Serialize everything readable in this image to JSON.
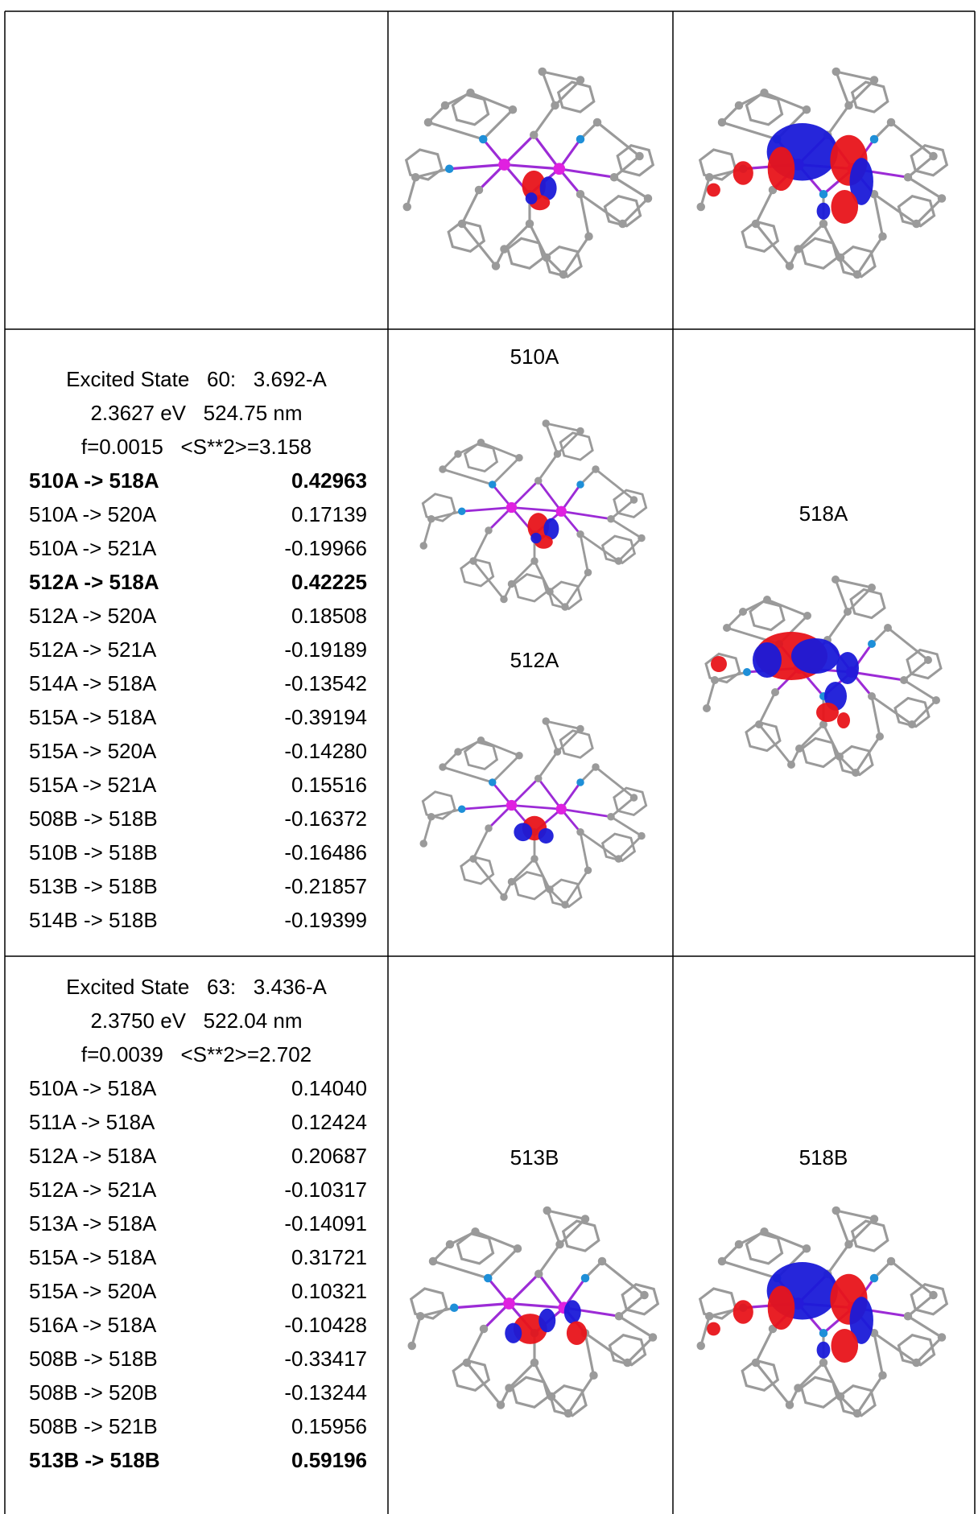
{
  "states": [
    {
      "lines": [
        "Excited State   60:   3.692-A",
        "2.3627 eV   524.75 nm",
        "f=0.0015   <S**2>=3.158"
      ],
      "transitions": [
        {
          "from": "510A -> 518A",
          "coef": "0.42963",
          "bold": true
        },
        {
          "from": "510A -> 520A",
          "coef": "0.17139",
          "bold": false
        },
        {
          "from": "510A -> 521A",
          "coef": "-0.19966",
          "bold": false
        },
        {
          "from": "512A -> 518A",
          "coef": "0.42225",
          "bold": true
        },
        {
          "from": "512A -> 520A",
          "coef": "0.18508",
          "bold": false
        },
        {
          "from": "512A -> 521A",
          "coef": "-0.19189",
          "bold": false
        },
        {
          "from": "514A -> 518A",
          "coef": "-0.13542",
          "bold": false
        },
        {
          "from": "515A -> 518A",
          "coef": "-0.39194",
          "bold": false
        },
        {
          "from": "515A -> 520A",
          "coef": "-0.14280",
          "bold": false
        },
        {
          "from": "515A -> 521A",
          "coef": "0.15516",
          "bold": false
        },
        {
          "from": "508B -> 518B",
          "coef": "-0.16372",
          "bold": false
        },
        {
          "from": "510B -> 518B",
          "coef": "-0.16486",
          "bold": false
        },
        {
          "from": "513B -> 518B",
          "coef": "-0.21857",
          "bold": false
        },
        {
          "from": "514B -> 518B",
          "coef": "-0.19399",
          "bold": false
        }
      ],
      "orbitals": [
        "510A",
        "512A",
        "518A"
      ]
    },
    {
      "lines": [
        "Excited State   63:   3.436-A",
        "2.3750 eV   522.04 nm",
        "f=0.0039   <S**2>=2.702"
      ],
      "transitions": [
        {
          "from": "510A -> 518A",
          "coef": "0.14040",
          "bold": false
        },
        {
          "from": "511A -> 518A",
          "coef": "0.12424",
          "bold": false
        },
        {
          "from": "512A -> 518A",
          "coef": "0.20687",
          "bold": false
        },
        {
          "from": "512A -> 521A",
          "coef": "-0.10317",
          "bold": false
        },
        {
          "from": "513A -> 518A",
          "coef": "-0.14091",
          "bold": false
        },
        {
          "from": "515A -> 518A",
          "coef": "0.31721",
          "bold": false
        },
        {
          "from": "515A -> 520A",
          "coef": "0.10321",
          "bold": false
        },
        {
          "from": "516A -> 518A",
          "coef": "-0.10428",
          "bold": false
        },
        {
          "from": "508B -> 518B",
          "coef": "-0.33417",
          "bold": false
        },
        {
          "from": "508B -> 520B",
          "coef": "-0.13244",
          "bold": false
        },
        {
          "from": "508B -> 521B",
          "coef": "0.15956",
          "bold": false
        },
        {
          "from": "513B -> 518B",
          "coef": "0.59196",
          "bold": true
        }
      ],
      "orbitals": [
        "513B",
        "518B"
      ]
    }
  ]
}
